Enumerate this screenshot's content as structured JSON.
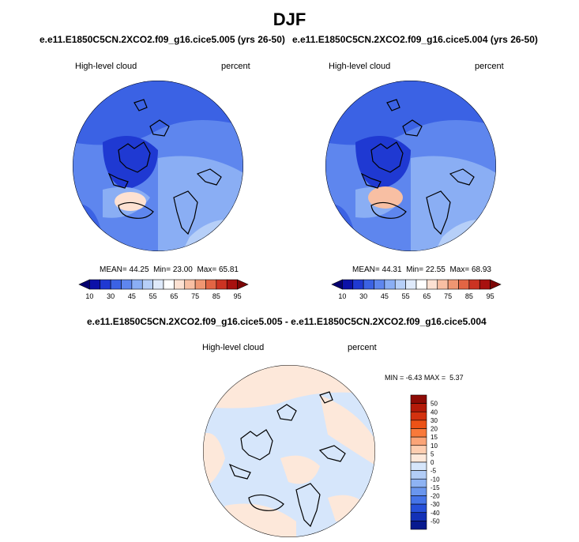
{
  "figure": {
    "season": "DJF"
  },
  "panels": [
    {
      "title": "e.e11.E1850C5CN.2XCO2.f09_g16.cice5.005 (yrs 26-50)",
      "field_label": "High-level cloud",
      "units": "percent",
      "stats": {
        "mean_label": "MEAN=",
        "mean": "44.25",
        "min_label": "Min=",
        "min": "23.00",
        "max_label": "Max=",
        "max": "65.81"
      }
    },
    {
      "title": "e.e11.E1850C5CN.2XCO2.f09_g16.cice5.004 (yrs 26-50)",
      "field_label": "High-level cloud",
      "units": "percent",
      "stats": {
        "mean_label": "MEAN=",
        "mean": "44.31",
        "min_label": "Min=",
        "min": "22.55",
        "max_label": "Max=",
        "max": "68.93"
      }
    }
  ],
  "diff_panel": {
    "title": "e.e11.E1850C5CN.2XCO2.f09_g16.cice5.005 - e.e11.E1850C5CN.2XCO2.f09_g16.cice5.004",
    "field_label": "High-level cloud",
    "units": "percent",
    "stats": {
      "min_label": "MIN =",
      "min": "-6.43",
      "max_label": "MAX =",
      "max": "5.37"
    }
  },
  "chart_data": [
    {
      "type": "heatmap",
      "projection": "polar stereographic (north)",
      "title": "e.e11.E1850C5CN.2XCO2.f09_g16.cice5.005 (yrs 26-50)",
      "variable": "High-level cloud",
      "units": "percent",
      "mean": 44.25,
      "min": 23.0,
      "max": 65.81,
      "colorbar": {
        "orientation": "horizontal",
        "levels": [
          10,
          20,
          30,
          40,
          45,
          50,
          55,
          60,
          65,
          70,
          75,
          80,
          85,
          90,
          95
        ],
        "tick_labels": [
          "10",
          "30",
          "45",
          "55",
          "65",
          "75",
          "85",
          "95"
        ],
        "colors": [
          "#05006f",
          "#0c11a8",
          "#1f39d2",
          "#3b62e4",
          "#5e86ee",
          "#8aaef4",
          "#b6cff8",
          "#dfeafb",
          "#ffffff",
          "#fde1d2",
          "#f8bfa3",
          "#ef9672",
          "#e26544",
          "#cc3322",
          "#a8110f",
          "#7c0606"
        ]
      }
    },
    {
      "type": "heatmap",
      "projection": "polar stereographic (north)",
      "title": "e.e11.E1850C5CN.2XCO2.f09_g16.cice5.004 (yrs 26-50)",
      "variable": "High-level cloud",
      "units": "percent",
      "mean": 44.31,
      "min": 22.55,
      "max": 68.93,
      "colorbar": {
        "orientation": "horizontal",
        "levels": [
          10,
          20,
          30,
          40,
          45,
          50,
          55,
          60,
          65,
          70,
          75,
          80,
          85,
          90,
          95
        ],
        "tick_labels": [
          "10",
          "30",
          "45",
          "55",
          "65",
          "75",
          "85",
          "95"
        ],
        "colors": [
          "#05006f",
          "#0c11a8",
          "#1f39d2",
          "#3b62e4",
          "#5e86ee",
          "#8aaef4",
          "#b6cff8",
          "#dfeafb",
          "#ffffff",
          "#fde1d2",
          "#f8bfa3",
          "#ef9672",
          "#e26544",
          "#cc3322",
          "#a8110f",
          "#7c0606"
        ]
      }
    },
    {
      "type": "heatmap",
      "projection": "polar stereographic (north)",
      "title": "e.e11.E1850C5CN.2XCO2.f09_g16.cice5.005 - e.e11.E1850C5CN.2XCO2.f09_g16.cice5.004",
      "variable": "High-level cloud",
      "units": "percent",
      "min": -6.43,
      "max": 5.37,
      "colorbar": {
        "orientation": "vertical",
        "levels": [
          50,
          40,
          30,
          20,
          15,
          10,
          5,
          0,
          -5,
          -10,
          -15,
          -20,
          -30,
          -40,
          -50
        ],
        "tick_labels": [
          "50",
          "40",
          "30",
          "20",
          "15",
          "10",
          "5",
          "0",
          "-5",
          "-10",
          "-15",
          "-20",
          "-30",
          "-40",
          "-50"
        ],
        "colors": [
          "#8e0b05",
          "#b41a09",
          "#d3320f",
          "#ec5216",
          "#f9793a",
          "#fba477",
          "#fdcdb0",
          "#fde8da",
          "#d6e6fb",
          "#b2cdf7",
          "#8eb3f3",
          "#6a96ee",
          "#4574e8",
          "#2650d9",
          "#1331b7",
          "#081a8f"
        ]
      }
    }
  ]
}
